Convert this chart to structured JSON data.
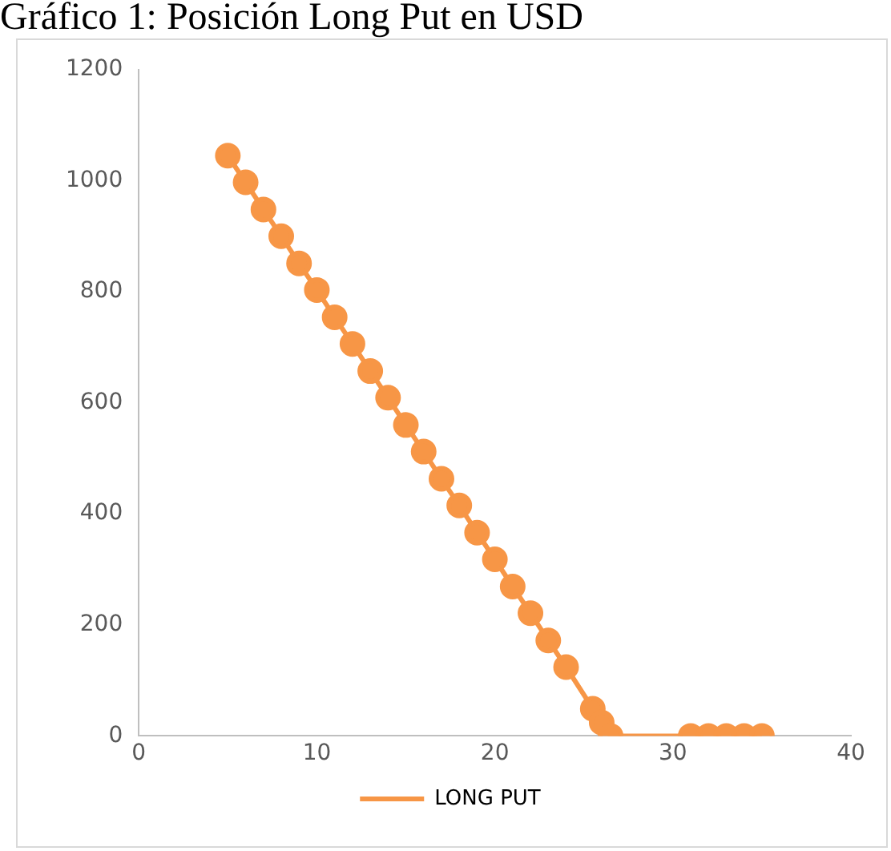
{
  "chart_data": {
    "type": "line",
    "title": "Gráfico 1: Posición Long Put en USD",
    "x": [
      5,
      6,
      7,
      8,
      9,
      10,
      11,
      12,
      13,
      14,
      15,
      16,
      17,
      18,
      19,
      20,
      21,
      22,
      23,
      24,
      25.5,
      26,
      26.5,
      31,
      32,
      33,
      34,
      35
    ],
    "series": [
      {
        "name": "LONG PUT",
        "color": "#f79646",
        "values": [
          1045,
          997,
          948,
          900,
          851,
          803,
          754,
          706,
          657,
          609,
          560,
          512,
          463,
          415,
          366,
          318,
          269,
          221,
          172,
          124,
          49,
          24,
          0,
          0,
          0,
          0,
          0,
          0
        ]
      }
    ],
    "xlim": [
      0,
      40
    ],
    "xticks": [
      0,
      10,
      20,
      30,
      40
    ],
    "ylim": [
      0,
      1200
    ],
    "yticks": [
      0,
      200,
      400,
      600,
      800,
      1000,
      1200
    ],
    "grid": false,
    "legend": "bottom",
    "marker": "circle",
    "line_style": "solid"
  }
}
